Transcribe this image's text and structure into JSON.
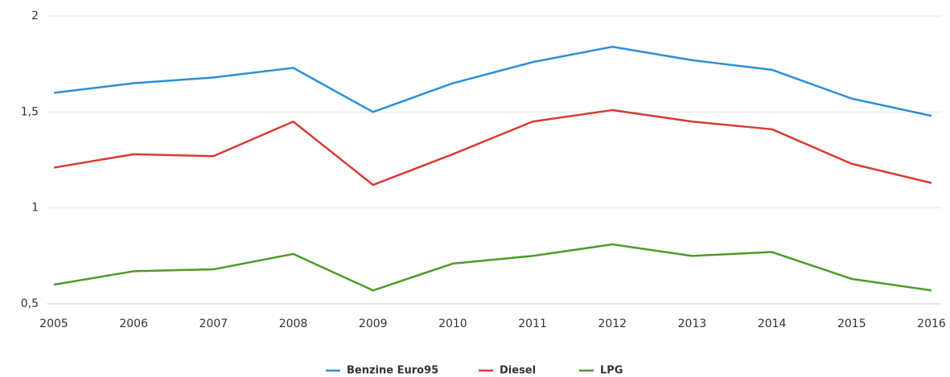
{
  "chart_data": {
    "type": "line",
    "categories": [
      "2005",
      "2006",
      "2007",
      "2008",
      "2009",
      "2010",
      "2011",
      "2012",
      "2013",
      "2014",
      "2015",
      "2016"
    ],
    "series": [
      {
        "name": "Benzine Euro95",
        "color": "#2b8fd6",
        "values": [
          1.6,
          1.65,
          1.68,
          1.73,
          1.5,
          1.65,
          1.76,
          1.84,
          1.77,
          1.72,
          1.57,
          1.48
        ]
      },
      {
        "name": "Diesel",
        "color": "#d93a35",
        "values": [
          1.21,
          1.28,
          1.27,
          1.45,
          1.12,
          1.28,
          1.45,
          1.51,
          1.45,
          1.41,
          1.23,
          1.13
        ]
      },
      {
        "name": "LPG",
        "color": "#4d9a2a",
        "values": [
          0.6,
          0.67,
          0.68,
          0.76,
          0.57,
          0.71,
          0.75,
          0.81,
          0.75,
          0.77,
          0.63,
          0.57
        ]
      }
    ],
    "ylim": [
      0.5,
      2
    ],
    "yticks": [
      {
        "value": 0.5,
        "label": "0,5"
      },
      1,
      {
        "value": 1.5,
        "label": "1,5"
      },
      2
    ],
    "grid": true,
    "legend": "bottom"
  }
}
